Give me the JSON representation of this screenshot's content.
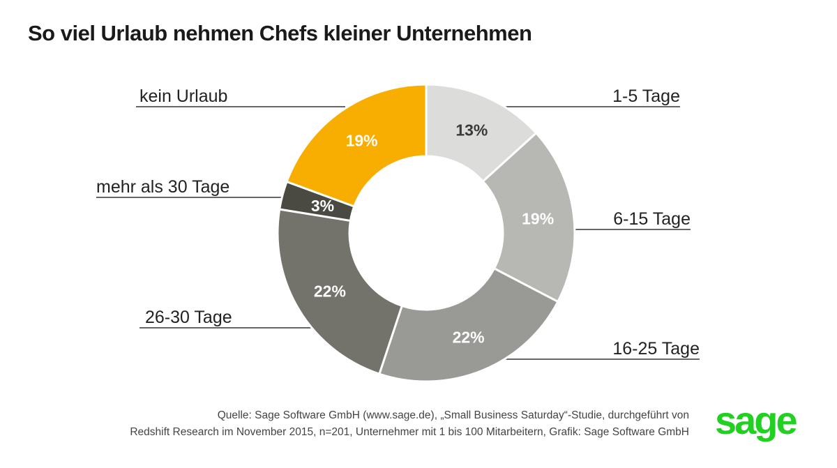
{
  "title": "So viel Urlaub nehmen Chefs kleiner Unternehmen",
  "chart_data": {
    "type": "pie",
    "donut": true,
    "title": "So viel Urlaub nehmen Chefs kleiner Unternehmen",
    "slices": [
      {
        "label": "1-5 Tage",
        "value": 13,
        "display": "13%",
        "color": "#dcdcda",
        "text_color": "#3a3a36"
      },
      {
        "label": "6-15 Tage",
        "value": 19,
        "display": "19%",
        "color": "#b7b7b4",
        "text_color": "#ffffff"
      },
      {
        "label": "16-25 Tage",
        "value": 22,
        "display": "22%",
        "color": "#999995",
        "text_color": "#ffffff"
      },
      {
        "label": "26-30 Tage",
        "value": 22,
        "display": "22%",
        "color": "#73736c",
        "text_color": "#ffffff"
      },
      {
        "label": "mehr als 30 Tage",
        "value": 3,
        "display": "3%",
        "color": "#4a4a42",
        "text_color": "#ffffff"
      },
      {
        "label": "kein Urlaub",
        "value": 19,
        "display": "19%",
        "color": "#f8ae00",
        "text_color": "#ffffff"
      }
    ],
    "legend": "leader-line labels"
  },
  "source": {
    "line1": "Quelle: Sage Software GmbH (www.sage.de), „Small Business Saturday“-Studie, durchgeführt von",
    "line2": "Redshift Research im November 2015, n=201, Unternehmer mit 1 bis 100 Mitarbeitern, Grafik: Sage Software GmbH"
  },
  "logo": {
    "text": "sage",
    "color": "#22d022"
  }
}
